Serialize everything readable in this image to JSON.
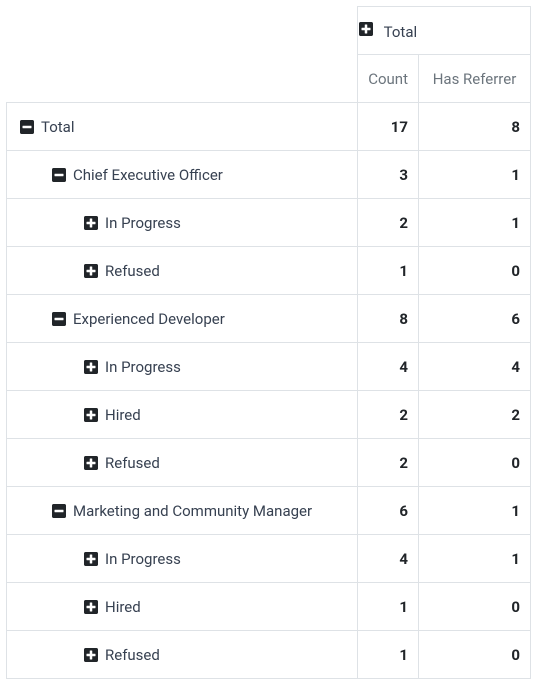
{
  "header": {
    "total_label": "Total",
    "count_label": "Count",
    "referrer_label": "Has Referrer"
  },
  "rows": [
    {
      "label": "Total",
      "depth": 0,
      "expanded": true,
      "count": 17,
      "referrer": 8
    },
    {
      "label": "Chief Executive Officer",
      "depth": 1,
      "expanded": true,
      "count": 3,
      "referrer": 1
    },
    {
      "label": "In Progress",
      "depth": 2,
      "expanded": false,
      "count": 2,
      "referrer": 1
    },
    {
      "label": "Refused",
      "depth": 2,
      "expanded": false,
      "count": 1,
      "referrer": 0
    },
    {
      "label": "Experienced Developer",
      "depth": 1,
      "expanded": true,
      "count": 8,
      "referrer": 6
    },
    {
      "label": "In Progress",
      "depth": 2,
      "expanded": false,
      "count": 4,
      "referrer": 4
    },
    {
      "label": "Hired",
      "depth": 2,
      "expanded": false,
      "count": 2,
      "referrer": 2
    },
    {
      "label": "Refused",
      "depth": 2,
      "expanded": false,
      "count": 2,
      "referrer": 0
    },
    {
      "label": "Marketing and Community Manager",
      "depth": 1,
      "expanded": true,
      "count": 6,
      "referrer": 1
    },
    {
      "label": "In Progress",
      "depth": 2,
      "expanded": false,
      "count": 4,
      "referrer": 1
    },
    {
      "label": "Hired",
      "depth": 2,
      "expanded": false,
      "count": 1,
      "referrer": 0
    },
    {
      "label": "Refused",
      "depth": 2,
      "expanded": false,
      "count": 1,
      "referrer": 0
    }
  ],
  "colors": {
    "icon_fill": "#212529",
    "border": "#dee2e6"
  }
}
